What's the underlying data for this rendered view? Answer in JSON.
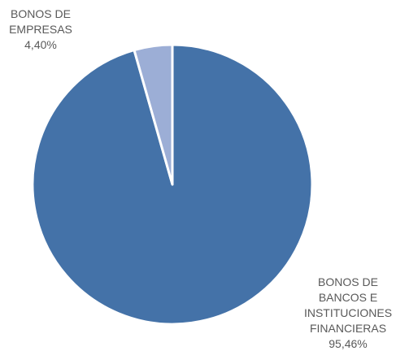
{
  "chart_data": {
    "type": "pie",
    "slices": [
      {
        "label_lines": [
          "BONOS DE",
          "BANCOS E",
          "INSTITUCIONES",
          "FINANCIERAS"
        ],
        "value": 95.46,
        "value_label": "95,46%",
        "color": "#4472A8"
      },
      {
        "label_lines": [
          "BONOS DE",
          "EMPRESAS"
        ],
        "value": 4.4,
        "value_label": "4,40%",
        "color": "#9CAED6"
      }
    ],
    "start_angle_deg": 0,
    "direction": "clockwise",
    "slice_border_color": "#ffffff",
    "legend": "none",
    "data_labels": "outside"
  }
}
